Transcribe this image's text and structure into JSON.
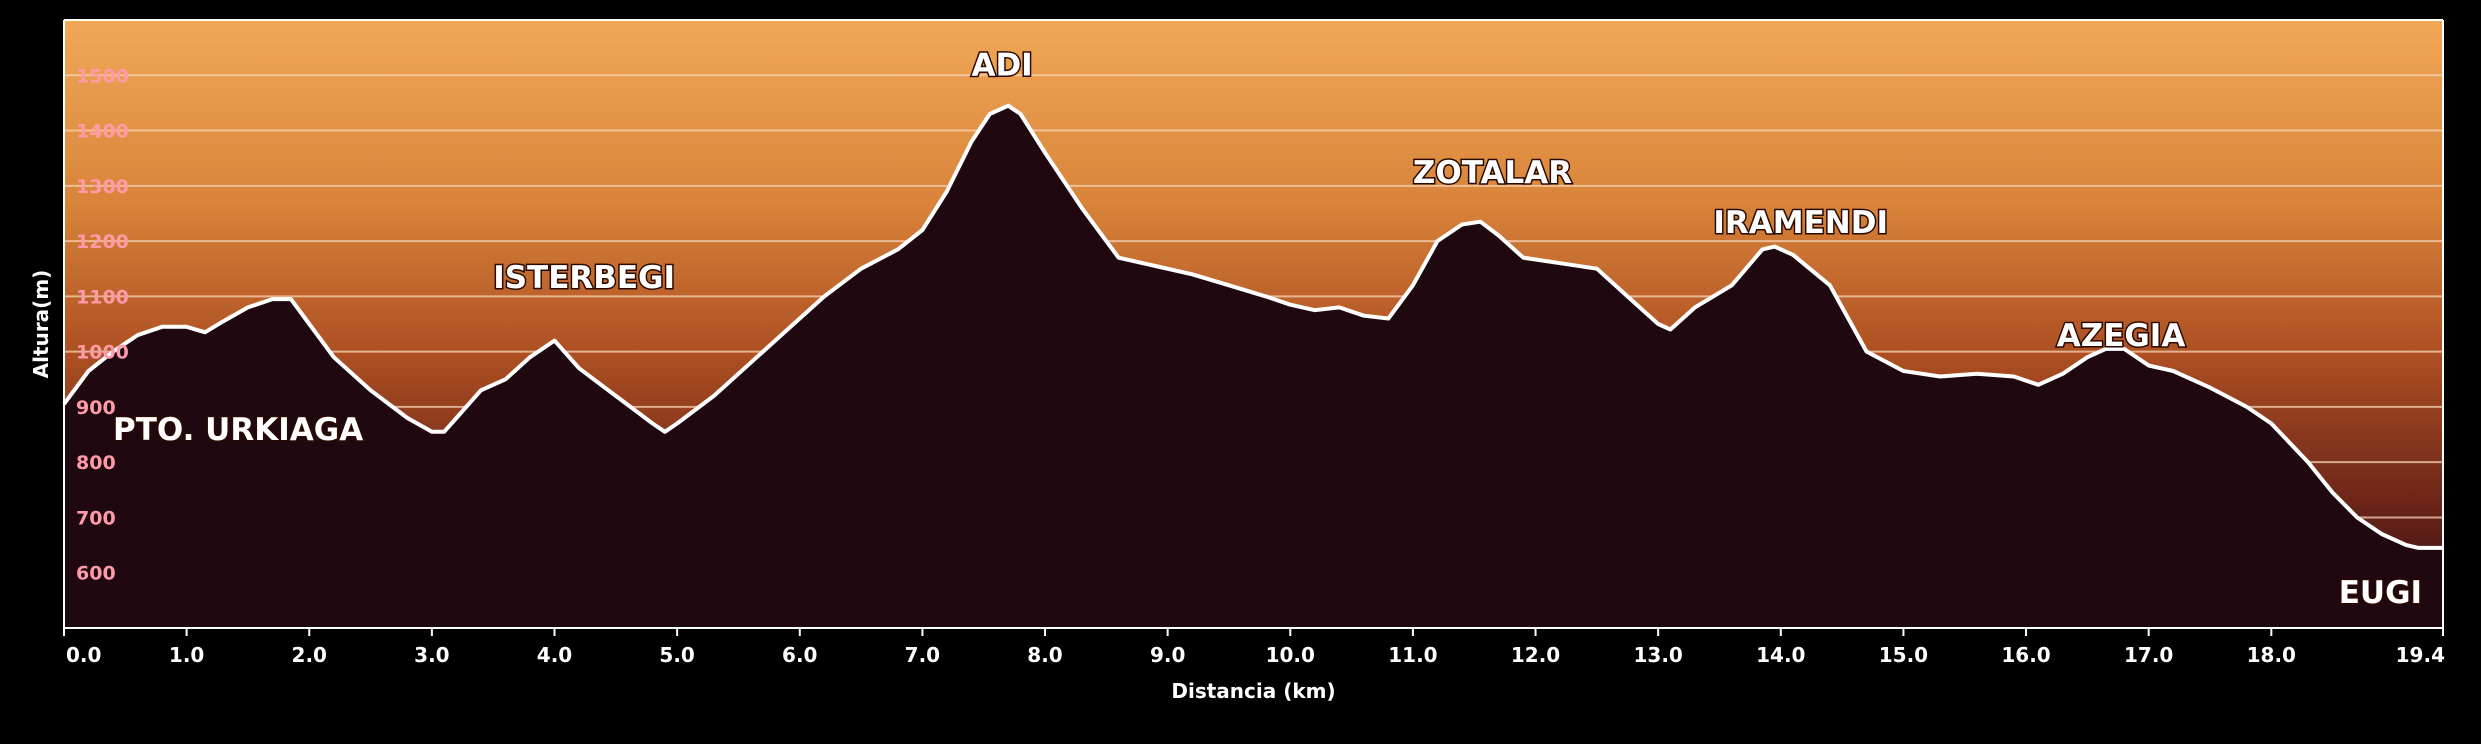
{
  "chart_data": {
    "type": "area",
    "title": "",
    "xlabel": "Distancia  (km)",
    "ylabel": "Altura(m)",
    "xlim": [
      0,
      19.4
    ],
    "ylim": [
      500,
      1600
    ],
    "grid": true,
    "x_ticks": [
      "0.0",
      "1.0",
      "2.0",
      "3.0",
      "4.0",
      "5.0",
      "6.0",
      "7.0",
      "8.0",
      "9.0",
      "10.0",
      "11.0",
      "12.0",
      "13.0",
      "14.0",
      "15.0",
      "16.0",
      "17.0",
      "18.0",
      "19.4"
    ],
    "y_ticks": [
      "600",
      "700",
      "800",
      "900",
      "1000",
      "1100",
      "1200",
      "1300",
      "1400",
      "1500"
    ],
    "series": [
      {
        "x": [
          0,
          0.2,
          0.4,
          0.6,
          0.8,
          1.0,
          1.15,
          1.3,
          1.5,
          1.7,
          1.85,
          2.0,
          2.2,
          2.5,
          2.8,
          3.0,
          3.1,
          3.2,
          3.4,
          3.6,
          3.8,
          4.0,
          4.2,
          4.5,
          4.8,
          4.9,
          5.0,
          5.3,
          5.6,
          5.9,
          6.2,
          6.5,
          6.8,
          7.0,
          7.2,
          7.4,
          7.55,
          7.7,
          7.8,
          8.0,
          8.3,
          8.6,
          8.9,
          9.2,
          9.5,
          9.8,
          10.0,
          10.2,
          10.4,
          10.6,
          10.8,
          11.0,
          11.2,
          11.4,
          11.55,
          11.7,
          11.9,
          12.2,
          12.5,
          12.8,
          13.0,
          13.1,
          13.3,
          13.6,
          13.85,
          13.95,
          14.1,
          14.4,
          14.7,
          15.0,
          15.3,
          15.6,
          15.9,
          16.1,
          16.3,
          16.5,
          16.65,
          16.8,
          17.0,
          17.2,
          17.5,
          17.8,
          18.0,
          18.3,
          18.5,
          18.7,
          18.9,
          19.1,
          19.2,
          19.4
        ],
        "y": [
          905,
          965,
          1000,
          1030,
          1045,
          1045,
          1035,
          1055,
          1080,
          1095,
          1095,
          1050,
          990,
          930,
          880,
          855,
          855,
          880,
          930,
          950,
          990,
          1020,
          970,
          920,
          870,
          855,
          870,
          920,
          980,
          1040,
          1100,
          1150,
          1185,
          1220,
          1290,
          1380,
          1430,
          1445,
          1430,
          1360,
          1260,
          1170,
          1155,
          1140,
          1120,
          1100,
          1085,
          1075,
          1080,
          1065,
          1060,
          1120,
          1200,
          1230,
          1235,
          1210,
          1170,
          1160,
          1150,
          1090,
          1050,
          1040,
          1080,
          1120,
          1185,
          1190,
          1175,
          1120,
          1000,
          965,
          955,
          960,
          955,
          940,
          960,
          990,
          1005,
          1005,
          975,
          965,
          935,
          900,
          870,
          800,
          745,
          700,
          670,
          650,
          645,
          645
        ]
      }
    ],
    "annotations": [
      {
        "text": "PTO. URKIAGA",
        "x": 0.4,
        "y": 840
      },
      {
        "text": "ISTERBEGI",
        "x": 3.5,
        "y": 1115
      },
      {
        "text": "ADI",
        "x": 7.4,
        "y": 1500
      },
      {
        "text": "ZOTALAR",
        "x": 11.0,
        "y": 1305
      },
      {
        "text": "IRAMENDI",
        "x": 13.45,
        "y": 1215
      },
      {
        "text": "AZEGIA",
        "x": 16.25,
        "y": 1010
      },
      {
        "text": "EUGI",
        "x": 18.55,
        "y": 545
      }
    ],
    "colors": {
      "band_top": "#f0a654",
      "band_bottom": "#3f1514",
      "terrain_fill": "#1f0810",
      "profile_line": "#ffffff",
      "ytick": "#ff9aa8"
    }
  }
}
